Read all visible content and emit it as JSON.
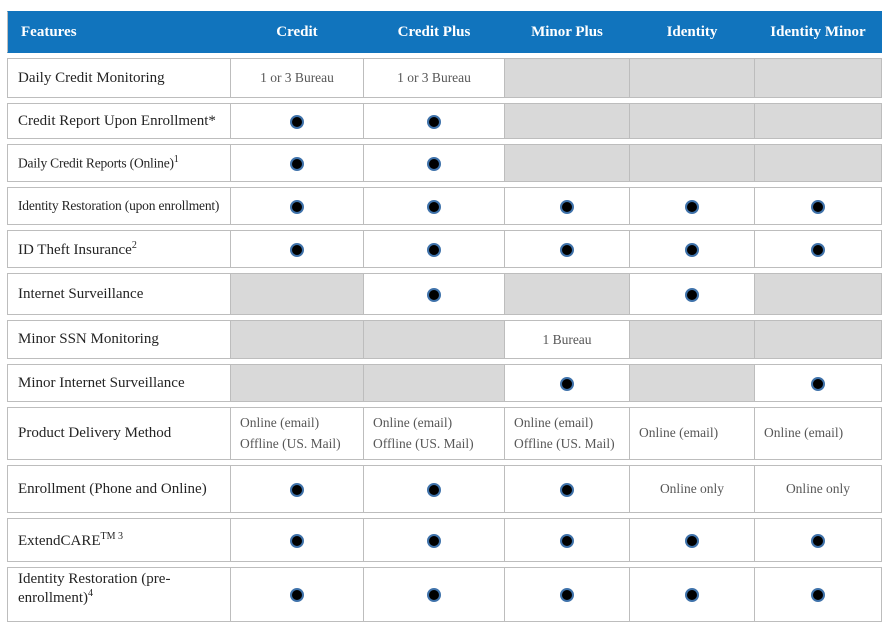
{
  "table": {
    "colors": {
      "header_bg": "#1174bd",
      "header_text": "#ffffff",
      "unavailable_cell_bg": "#d9d9d9",
      "border": "#bdbdbd",
      "feature_text": "#242424",
      "value_text": "#575757",
      "dot_ring": "#3f72aa",
      "dot_core": "#000000"
    },
    "columns": [
      "Features",
      "Credit",
      "Credit Plus",
      "Minor Plus",
      "Identity",
      "Identity Minor"
    ],
    "dot_meaning": "feature-included-dot",
    "rows": [
      {
        "feature": "Daily Credit Monitoring",
        "sup": "",
        "cells": [
          {
            "type": "text",
            "value": "1 or 3 Bureau"
          },
          {
            "type": "text",
            "value": "1 or 3 Bureau"
          },
          {
            "type": "gray"
          },
          {
            "type": "gray"
          },
          {
            "type": "gray"
          }
        ]
      },
      {
        "feature": "Credit Report Upon Enrollment*",
        "sup": "",
        "cells": [
          {
            "type": "dot"
          },
          {
            "type": "dot"
          },
          {
            "type": "gray"
          },
          {
            "type": "gray"
          },
          {
            "type": "gray"
          }
        ]
      },
      {
        "feature": "Daily Credit Reports (Online)",
        "sup": "1",
        "cells": [
          {
            "type": "dot"
          },
          {
            "type": "dot"
          },
          {
            "type": "gray"
          },
          {
            "type": "gray"
          },
          {
            "type": "gray"
          }
        ]
      },
      {
        "feature": "Identity Restoration (upon enrollment)",
        "sup": "",
        "cells": [
          {
            "type": "dot"
          },
          {
            "type": "dot"
          },
          {
            "type": "dot"
          },
          {
            "type": "dot"
          },
          {
            "type": "dot"
          }
        ]
      },
      {
        "feature": "ID Theft Insurance",
        "sup": "2",
        "cells": [
          {
            "type": "dot"
          },
          {
            "type": "dot"
          },
          {
            "type": "dot"
          },
          {
            "type": "dot"
          },
          {
            "type": "dot"
          }
        ]
      },
      {
        "feature": "Internet Surveillance",
        "sup": "",
        "cells": [
          {
            "type": "gray"
          },
          {
            "type": "dot"
          },
          {
            "type": "gray"
          },
          {
            "type": "dot"
          },
          {
            "type": "gray"
          }
        ]
      },
      {
        "feature": "Minor SSN Monitoring",
        "sup": "",
        "cells": [
          {
            "type": "gray"
          },
          {
            "type": "gray"
          },
          {
            "type": "text",
            "value": "1 Bureau"
          },
          {
            "type": "gray"
          },
          {
            "type": "gray"
          }
        ]
      },
      {
        "feature": "Minor Internet Surveillance",
        "sup": "",
        "cells": [
          {
            "type": "gray"
          },
          {
            "type": "gray"
          },
          {
            "type": "dot"
          },
          {
            "type": "gray"
          },
          {
            "type": "dot"
          }
        ]
      },
      {
        "feature": "Product Delivery Method",
        "sup": "",
        "cells": [
          {
            "type": "lines",
            "lines": [
              "Online (email)",
              "Offline (US. Mail)"
            ]
          },
          {
            "type": "lines",
            "lines": [
              "Online (email)",
              "Offline (US. Mail)"
            ]
          },
          {
            "type": "lines",
            "lines": [
              "Online (email)",
              "Offline (US. Mail)"
            ]
          },
          {
            "type": "lines",
            "lines": [
              "Online (email)"
            ]
          },
          {
            "type": "lines",
            "lines": [
              "Online (email)"
            ]
          }
        ]
      },
      {
        "feature": "Enrollment (Phone and Online)",
        "sup": "",
        "cells": [
          {
            "type": "dot"
          },
          {
            "type": "dot"
          },
          {
            "type": "dot"
          },
          {
            "type": "text",
            "value": "Online only"
          },
          {
            "type": "text",
            "value": "Online only"
          }
        ]
      },
      {
        "feature": "ExtendCARE",
        "sup": "TM 3",
        "cells": [
          {
            "type": "dot"
          },
          {
            "type": "dot"
          },
          {
            "type": "dot"
          },
          {
            "type": "dot"
          },
          {
            "type": "dot"
          }
        ]
      },
      {
        "feature": "Identity Restoration (pre-enrollment)",
        "sup": "4",
        "cells": [
          {
            "type": "dot"
          },
          {
            "type": "dot"
          },
          {
            "type": "dot"
          },
          {
            "type": "dot"
          },
          {
            "type": "dot"
          }
        ]
      }
    ]
  }
}
